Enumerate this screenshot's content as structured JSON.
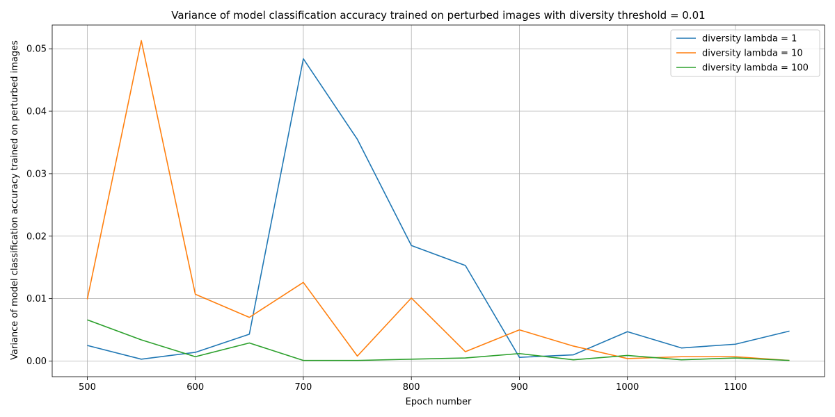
{
  "chart_data": {
    "type": "line",
    "title": "Variance of model classification accuracy trained on perturbed images with diversity threshold = 0.01",
    "xlabel": "Epoch number",
    "ylabel": "Variance of model classification accuracy trained on perturbed images",
    "x": [
      500,
      550,
      600,
      650,
      700,
      750,
      800,
      850,
      900,
      950,
      1000,
      1050,
      1100,
      1150
    ],
    "xlim": [
      467.5,
      1182.5
    ],
    "ylim": [
      -0.0025,
      0.0538
    ],
    "xticks": [
      500,
      600,
      700,
      800,
      900,
      1000,
      1100
    ],
    "xtick_labels": [
      "500",
      "600",
      "700",
      "800",
      "900",
      "1000",
      "1100"
    ],
    "yticks": [
      0.0,
      0.01,
      0.02,
      0.03,
      0.04,
      0.05
    ],
    "ytick_labels": [
      "0.00",
      "0.01",
      "0.02",
      "0.03",
      "0.04",
      "0.05"
    ],
    "grid": true,
    "legend_position": "top-right",
    "series": [
      {
        "name": "diversity lambda = 1",
        "color": "#1f77b4",
        "values": [
          0.0025,
          0.0003,
          0.0014,
          0.0043,
          0.0484,
          0.0355,
          0.0185,
          0.0153,
          0.0006,
          0.001,
          0.0047,
          0.0021,
          0.0027,
          0.0048
        ]
      },
      {
        "name": "diversity lambda = 10",
        "color": "#ff7f0e",
        "values": [
          0.0099,
          0.0513,
          0.0107,
          0.007,
          0.0126,
          0.0008,
          0.0101,
          0.0015,
          0.005,
          0.0024,
          0.0004,
          0.0007,
          0.0007,
          0.0001
        ]
      },
      {
        "name": "diversity lambda = 100",
        "color": "#2ca02c",
        "values": [
          0.0066,
          0.0034,
          0.0007,
          0.0029,
          0.0001,
          0.0001,
          0.0003,
          0.0005,
          0.0012,
          0.0002,
          0.0009,
          0.0002,
          0.0005,
          0.0001
        ]
      }
    ]
  }
}
